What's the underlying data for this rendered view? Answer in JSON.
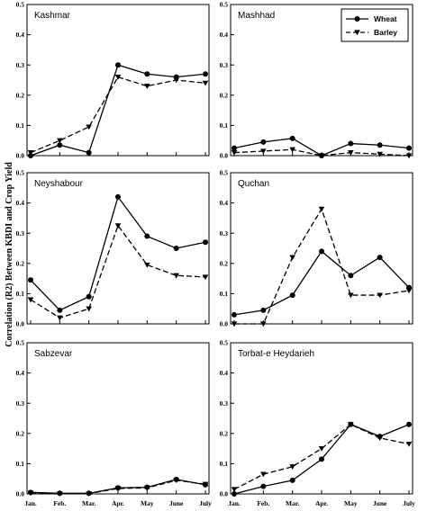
{
  "chart_data": {
    "type": "line",
    "ylabel": "Correlation (R2) Between KBDI and Crop Yield",
    "categories": [
      "Jan.",
      "Feb.",
      "Mar.",
      "Apr.",
      "May",
      "June",
      "July"
    ],
    "ylim": [
      0,
      0.5
    ],
    "yticks": [
      "0.0",
      "0.1",
      "0.2",
      "0.3",
      "0.4",
      "0.5"
    ],
    "legend": {
      "placement": "top-right of Mashhad panel",
      "entries": [
        {
          "name": "Wheat",
          "marker": "circle",
          "line": "solid"
        },
        {
          "name": "Barley",
          "marker": "triangle-down",
          "line": "dashed"
        }
      ]
    },
    "panels": [
      {
        "title": "Kashmar",
        "series": [
          {
            "name": "Wheat",
            "values": [
              0.0,
              0.035,
              0.01,
              0.3,
              0.27,
              0.26,
              0.27
            ]
          },
          {
            "name": "Barley",
            "values": [
              0.01,
              0.05,
              0.095,
              0.26,
              0.23,
              0.25,
              0.24
            ]
          }
        ]
      },
      {
        "title": "Mashhad",
        "series": [
          {
            "name": "Wheat",
            "values": [
              0.025,
              0.045,
              0.057,
              0.0,
              0.04,
              0.035,
              0.025
            ]
          },
          {
            "name": "Barley",
            "values": [
              0.01,
              0.015,
              0.02,
              0.0,
              0.01,
              0.005,
              0.0
            ]
          }
        ]
      },
      {
        "title": "Neyshabour",
        "series": [
          {
            "name": "Wheat",
            "values": [
              0.145,
              0.045,
              0.09,
              0.42,
              0.29,
              0.25,
              0.27
            ]
          },
          {
            "name": "Barley",
            "values": [
              0.08,
              0.02,
              0.05,
              0.325,
              0.195,
              0.16,
              0.155
            ]
          }
        ]
      },
      {
        "title": "Quchan",
        "series": [
          {
            "name": "Wheat",
            "values": [
              0.03,
              0.045,
              0.095,
              0.24,
              0.16,
              0.22,
              0.12
            ]
          },
          {
            "name": "Barley",
            "values": [
              0.0,
              0.0,
              0.22,
              0.38,
              0.095,
              0.095,
              0.11
            ]
          }
        ]
      },
      {
        "title": "Sabzevar",
        "series": [
          {
            "name": "Wheat",
            "values": [
              0.005,
              0.002,
              0.002,
              0.02,
              0.022,
              0.048,
              0.03
            ]
          },
          {
            "name": "Barley",
            "values": [
              0.003,
              0.001,
              0.001,
              0.018,
              0.02,
              0.045,
              0.032
            ]
          }
        ]
      },
      {
        "title": "Torbat-e Heydarieh",
        "series": [
          {
            "name": "Wheat",
            "values": [
              0.0,
              0.025,
              0.045,
              0.115,
              0.23,
              0.19,
              0.23
            ]
          },
          {
            "name": "Barley",
            "values": [
              0.015,
              0.065,
              0.09,
              0.15,
              0.23,
              0.185,
              0.165
            ]
          }
        ]
      }
    ]
  }
}
